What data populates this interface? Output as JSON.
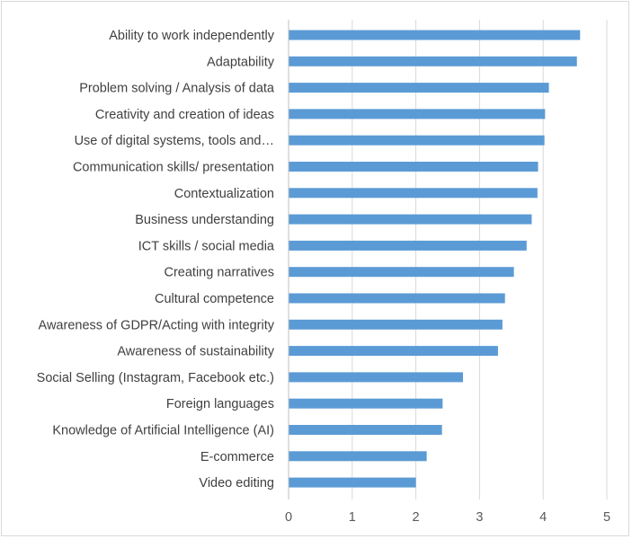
{
  "chart_data": {
    "type": "bar",
    "orientation": "horizontal",
    "title": "",
    "xlabel": "",
    "ylabel": "",
    "xlim": [
      0,
      5
    ],
    "x_ticks": [
      "0",
      "1",
      "2",
      "3",
      "4",
      "5"
    ],
    "grid": true,
    "legend": "none",
    "bar_color": "#5b9bd5",
    "categories": [
      "Ability to work independently",
      "Adaptability",
      "Problem solving / Analysis of data",
      "Creativity and creation of ideas",
      "Use of digital systems, tools and…",
      "Communication skills/ presentation",
      "Contextualization",
      "Business understanding",
      "ICT skills / social media",
      "Creating narratives",
      "Cultural competence",
      "Awareness of GDPR/Acting with integrity",
      "Awareness of sustainability",
      "Social Selling (Instagram, Facebook etc.)",
      "Foreign languages",
      "Knowledge of Artificial Intelligence (AI)",
      "E-commerce",
      "Video editing"
    ],
    "values": [
      4.58,
      4.53,
      4.09,
      4.03,
      4.02,
      3.92,
      3.91,
      3.82,
      3.74,
      3.54,
      3.4,
      3.36,
      3.29,
      2.74,
      2.42,
      2.41,
      2.17,
      2.0
    ]
  }
}
